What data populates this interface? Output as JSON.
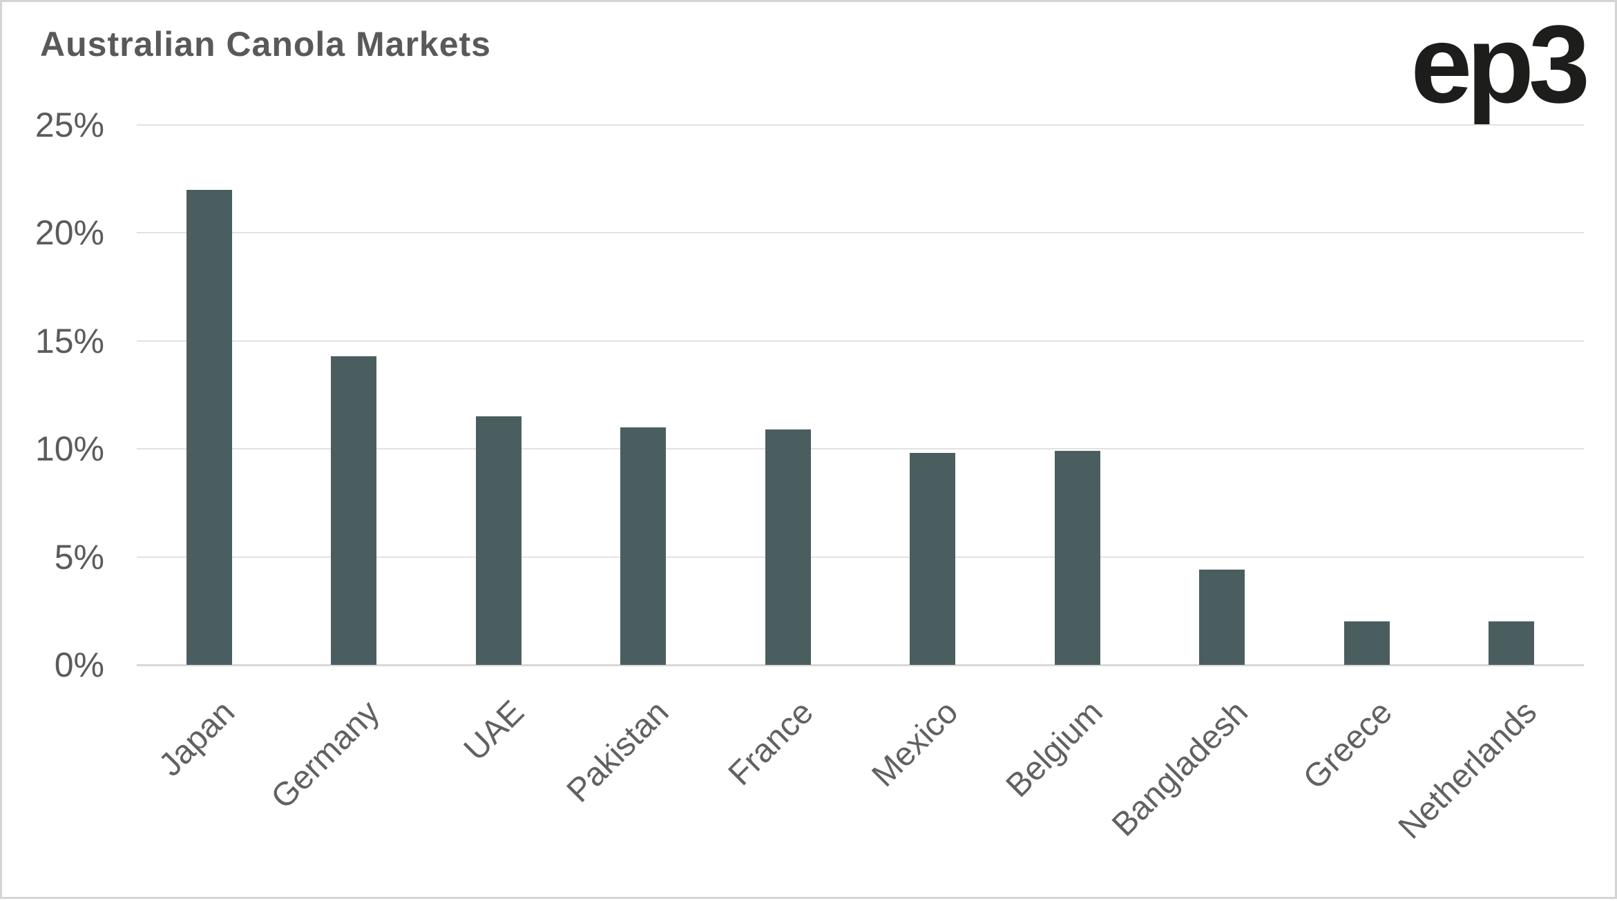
{
  "header": {
    "title": "Australian Canola Markets",
    "logo_text": "ep3"
  },
  "colors": {
    "bar": "#4b5e5f",
    "title_text": "#595959",
    "y_tick_text": "#5b5b5b",
    "x_tick_text": "#616161",
    "gridline": "#e2e2e2",
    "baseline": "#d8d8d8",
    "logo": "#1d1d1b",
    "frame_border": "#d4d4d4"
  },
  "chart_data": {
    "type": "bar",
    "title": "Australian Canola Markets",
    "categories": [
      "Japan",
      "Germany",
      "UAE",
      "Pakistan",
      "France",
      "Mexico",
      "Belgium",
      "Bangladesh",
      "Greece",
      "Netherlands"
    ],
    "values": [
      22,
      14.3,
      11.5,
      11,
      10.9,
      9.8,
      9.9,
      4.4,
      2,
      2
    ],
    "unit": "%",
    "xlabel": "",
    "ylabel": "",
    "ylim": [
      0,
      25
    ],
    "ytick_values": [
      25,
      20,
      15,
      10,
      5,
      0
    ],
    "ytick_labels": [
      "25%",
      "20%",
      "15%",
      "10%",
      "5%",
      "0%"
    ],
    "grid": "horizontal",
    "legend_position": "none",
    "bar_color": "#4b5e5f"
  }
}
